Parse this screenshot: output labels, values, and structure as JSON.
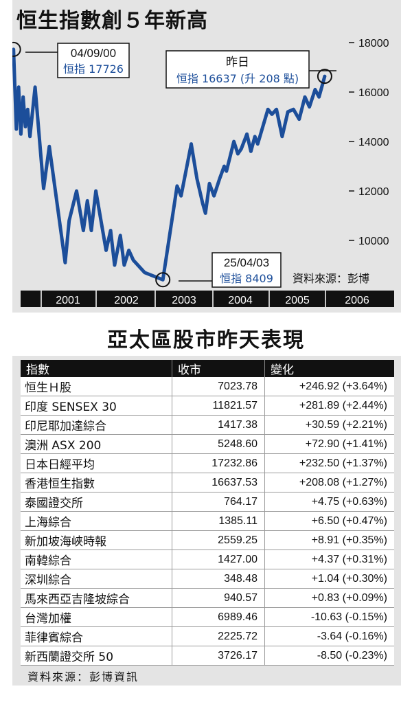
{
  "chart_data": {
    "type": "line",
    "title": "恒生指數創５年新高",
    "ylim": [
      8000,
      18000
    ],
    "yticks": [
      10000,
      12000,
      14000,
      16000,
      18000
    ],
    "xlim": [
      2000.65,
      2006.55
    ],
    "year_labels": [
      "2001",
      "2002",
      "2003",
      "2004",
      "2005",
      "2006"
    ],
    "year_label_positions": [
      2001.0,
      2002.0,
      2003.0,
      2004.0,
      2005.0,
      2006.0
    ],
    "series": [
      {
        "points": [
          [
            2000.67,
            17726
          ],
          [
            2000.72,
            14500
          ],
          [
            2000.76,
            16200
          ],
          [
            2000.8,
            14300
          ],
          [
            2000.84,
            15800
          ],
          [
            2000.88,
            14600
          ],
          [
            2000.92,
            15300
          ],
          [
            2000.96,
            14200
          ],
          [
            2001.05,
            16200
          ],
          [
            2001.2,
            12100
          ],
          [
            2001.3,
            13800
          ],
          [
            2001.58,
            9100
          ],
          [
            2001.65,
            10800
          ],
          [
            2001.78,
            12000
          ],
          [
            2001.9,
            10400
          ],
          [
            2001.97,
            11600
          ],
          [
            2002.04,
            10400
          ],
          [
            2002.12,
            12000
          ],
          [
            2002.3,
            9600
          ],
          [
            2002.38,
            10400
          ],
          [
            2002.45,
            9000
          ],
          [
            2002.55,
            10200
          ],
          [
            2002.62,
            9000
          ],
          [
            2002.7,
            9600
          ],
          [
            2002.78,
            9200
          ],
          [
            2002.98,
            8700
          ],
          [
            2003.3,
            8409
          ],
          [
            2003.55,
            12200
          ],
          [
            2003.62,
            11800
          ],
          [
            2003.8,
            13900
          ],
          [
            2003.9,
            12500
          ],
          [
            2004.0,
            11500
          ],
          [
            2004.05,
            11100
          ],
          [
            2004.12,
            12300
          ],
          [
            2004.2,
            11800
          ],
          [
            2004.3,
            12500
          ],
          [
            2004.38,
            13000
          ],
          [
            2004.42,
            12800
          ],
          [
            2004.55,
            14000
          ],
          [
            2004.62,
            13500
          ],
          [
            2004.68,
            13700
          ],
          [
            2004.78,
            14300
          ],
          [
            2004.85,
            13600
          ],
          [
            2004.92,
            14200
          ],
          [
            2004.97,
            13900
          ],
          [
            2005.15,
            15300
          ],
          [
            2005.22,
            15100
          ],
          [
            2005.3,
            15300
          ],
          [
            2005.4,
            14200
          ],
          [
            2005.5,
            15200
          ],
          [
            2005.6,
            15300
          ],
          [
            2005.7,
            14900
          ],
          [
            2005.8,
            15800
          ],
          [
            2005.88,
            15400
          ],
          [
            2005.98,
            16100
          ],
          [
            2006.05,
            15800
          ],
          [
            2006.15,
            16637
          ]
        ]
      }
    ],
    "annotations": [
      {
        "date": "04/09/00",
        "text": "恒指 17726"
      },
      {
        "date": "昨日",
        "text": "恒指 16637 (升 208 點)"
      },
      {
        "date": "25/04/03",
        "text": "恒指 8409"
      }
    ],
    "source": "資料來源：彭博"
  },
  "table": {
    "title": "亞太區股市昨天表現",
    "headers": [
      "指數",
      "收市",
      "變化"
    ],
    "rows": [
      {
        "name": "恒生Ｈ股",
        "close": "7023.78",
        "change": "+246.92 (+3.64%)"
      },
      {
        "name": "印度 SENSEX 30",
        "close": "11821.57",
        "change": "+281.89 (+2.44%)"
      },
      {
        "name": "印尼耶加達綜合",
        "close": "1417.38",
        "change": "+30.59 (+2.21%)"
      },
      {
        "name": "澳洲 ASX 200",
        "close": "5248.60",
        "change": "+72.90 (+1.41%)"
      },
      {
        "name": "日本日經平均",
        "close": "17232.86",
        "change": "+232.50 (+1.37%)"
      },
      {
        "name": "香港恒生指數",
        "close": "16637.53",
        "change": "+208.08 (+1.27%)"
      },
      {
        "name": "泰國證交所",
        "close": "764.17",
        "change": "+4.75 (+0.63%)"
      },
      {
        "name": "上海綜合",
        "close": "1385.11",
        "change": "+6.50 (+0.47%)"
      },
      {
        "name": "新加坡海峽時報",
        "close": "2559.25",
        "change": "+8.91 (+0.35%)"
      },
      {
        "name": "南韓綜合",
        "close": "1427.00",
        "change": "+4.37 (+0.31%)"
      },
      {
        "name": "深圳綜合",
        "close": "348.48",
        "change": "+1.04 (+0.30%)"
      },
      {
        "name": "馬來西亞吉隆坡綜合",
        "close": "940.57",
        "change": "+0.83 (+0.09%)"
      },
      {
        "name": "台灣加權",
        "close": "6989.46",
        "change": "-10.63 (-0.15%)"
      },
      {
        "name": "菲律賓綜合",
        "close": "2225.72",
        "change": "-3.64 (-0.16%)"
      },
      {
        "name": "新西蘭證交所 50",
        "close": "3726.17",
        "change": "-8.50 (-0.23%)"
      }
    ],
    "source": "資料來源：彭博資訊"
  },
  "colors": {
    "panel": "#e4e4e4",
    "line": "#1c4e9a",
    "annotation_text": "#1c4e9a",
    "year_band": "#111111"
  }
}
